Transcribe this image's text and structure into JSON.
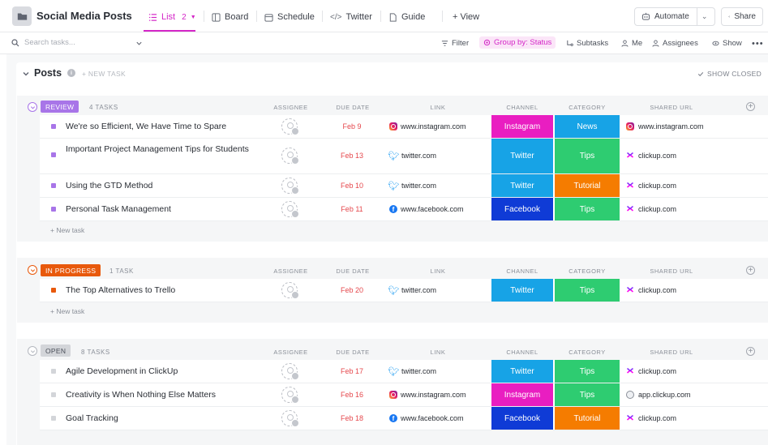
{
  "header": {
    "title": "Social Media Posts",
    "views": [
      {
        "label": "List",
        "count": "2",
        "icon": "list-icon"
      },
      {
        "label": "Board",
        "icon": "board-icon"
      },
      {
        "label": "Schedule",
        "icon": "calendar-icon"
      },
      {
        "label": "Twitter",
        "icon": "embed-icon"
      },
      {
        "label": "Guide",
        "icon": "doc-icon"
      }
    ],
    "add_view": "+ View",
    "automate": "Automate",
    "share": "Share",
    "accent_color": "#d426c7"
  },
  "toolbar": {
    "search_placeholder": "Search tasks...",
    "filter": "Filter",
    "group_by": "Group by: Status",
    "subtasks": "Subtasks",
    "me": "Me",
    "assignees": "Assignees",
    "show": "Show"
  },
  "list": {
    "title": "Posts",
    "new_task": "+ NEW TASK",
    "show_closed": "SHOW CLOSED",
    "new_task_row": "+ New task"
  },
  "columns": {
    "assignee": "ASSIGNEE",
    "due_date": "DUE DATE",
    "link": "LINK",
    "channel": "CHANNEL",
    "category": "CATEGORY",
    "shared_url": "SHARED URL"
  },
  "groups": [
    {
      "status": "REVIEW",
      "count": "4 TASKS",
      "color": "#a875e8",
      "tasks": [
        {
          "name": "We're so Efficient, We Have Time to Spare",
          "due": "Feb 9",
          "link": "www.instagram.com",
          "link_icon": "instagram",
          "channel": "Instagram",
          "channel_color": "#e91ec1",
          "category": "News",
          "category_color": "#17a3e6",
          "url": "www.instagram.com",
          "url_icon": "instagram"
        },
        {
          "name": "Important Project Management Tips for Students",
          "due": "Feb 13",
          "link": "twitter.com",
          "link_icon": "twitter",
          "channel": "Twitter",
          "channel_color": "#17a3e6",
          "category": "Tips",
          "category_color": "#2ecc71",
          "url": "clickup.com",
          "url_icon": "clickup"
        },
        {
          "name": "Using the GTD Method",
          "due": "Feb 10",
          "link": "twitter.com",
          "link_icon": "twitter",
          "channel": "Twitter",
          "channel_color": "#17a3e6",
          "category": "Tutorial",
          "category_color": "#f57c00",
          "url": "clickup.com",
          "url_icon": "clickup"
        },
        {
          "name": "Personal Task Management",
          "due": "Feb 11",
          "link": "www.facebook.com",
          "link_icon": "facebook",
          "channel": "Facebook",
          "channel_color": "#0f3bd6",
          "category": "Tips",
          "category_color": "#2ecc71",
          "url": "clickup.com",
          "url_icon": "clickup"
        }
      ]
    },
    {
      "status": "IN PROGRESS",
      "count": "1 TASK",
      "color": "#e8590c",
      "tasks": [
        {
          "name": "The Top Alternatives to Trello",
          "due": "Feb 20",
          "link": "twitter.com",
          "link_icon": "twitter",
          "channel": "Twitter",
          "channel_color": "#17a3e6",
          "category": "Tips",
          "category_color": "#2ecc71",
          "url": "clickup.com",
          "url_icon": "clickup"
        }
      ]
    },
    {
      "status": "OPEN",
      "count": "8 TASKS",
      "color": "#d3d5d9",
      "tasks": [
        {
          "name": "Agile Development in ClickUp",
          "due": "Feb 17",
          "link": "twitter.com",
          "link_icon": "twitter",
          "channel": "Twitter",
          "channel_color": "#17a3e6",
          "category": "Tips",
          "category_color": "#2ecc71",
          "url": "clickup.com",
          "url_icon": "clickup"
        },
        {
          "name": "Creativity is When Nothing Else Matters",
          "due": "Feb 16",
          "link": "www.instagram.com",
          "link_icon": "instagram",
          "channel": "Instagram",
          "channel_color": "#e91ec1",
          "category": "Tips",
          "category_color": "#2ecc71",
          "url": "app.clickup.com",
          "url_icon": "app"
        },
        {
          "name": "Goal Tracking",
          "due": "Feb 18",
          "link": "www.facebook.com",
          "link_icon": "facebook",
          "channel": "Facebook",
          "channel_color": "#0f3bd6",
          "category": "Tutorial",
          "category_color": "#f57c00",
          "url": "clickup.com",
          "url_icon": "clickup"
        }
      ]
    }
  ]
}
